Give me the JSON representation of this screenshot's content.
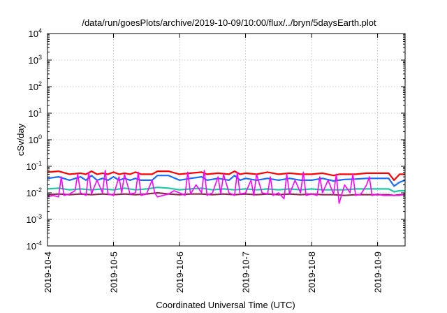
{
  "chart_data": {
    "type": "line",
    "title": "/data/run/goesPlots/archive/2019-10-09/10:00/flux/../bryn/5daysEarth.plot",
    "xlabel": "Coordinated Universal Time (UTC)",
    "ylabel": "cSv/day",
    "x_ticks": [
      "2019-10-4",
      "2019-10-5",
      "2019-10-6",
      "2019-10-7",
      "2019-10-8",
      "2019-10-9"
    ],
    "x_range": [
      "2019-10-04T00:00",
      "2019-10-09T10:00"
    ],
    "y_scale": "log",
    "ylim": [
      0.0001,
      10000
    ],
    "y_ticks": [
      {
        "base": "10",
        "exp": "4"
      },
      {
        "base": "10",
        "exp": "3"
      },
      {
        "base": "10",
        "exp": "2"
      },
      {
        "base": "10",
        "exp": "1"
      },
      {
        "base": "10",
        "exp": "0"
      },
      {
        "base": "10",
        "exp": "-1"
      },
      {
        "base": "10",
        "exp": "-2"
      },
      {
        "base": "10",
        "exp": "-3"
      },
      {
        "base": "10",
        "exp": "-4"
      }
    ],
    "grid": true,
    "series": [
      {
        "color": "#ff0000",
        "x_hours": [
          0,
          4,
          8,
          12,
          14,
          16,
          18,
          20,
          22,
          24,
          26,
          28,
          30,
          32,
          34,
          38,
          40,
          44,
          48,
          52,
          56,
          58,
          62,
          66,
          68,
          70,
          72,
          76,
          80,
          84,
          88,
          92,
          96,
          100,
          104,
          106,
          108,
          112,
          116,
          120,
          124,
          126,
          128,
          130
        ],
        "values": [
          0.06,
          0.065,
          0.05,
          0.055,
          0.05,
          0.065,
          0.05,
          0.055,
          0.05,
          0.06,
          0.05,
          0.055,
          0.05,
          0.06,
          0.05,
          0.05,
          0.065,
          0.065,
          0.05,
          0.055,
          0.06,
          0.05,
          0.055,
          0.05,
          0.065,
          0.05,
          0.055,
          0.05,
          0.06,
          0.05,
          0.055,
          0.05,
          0.05,
          0.055,
          0.045,
          0.05,
          0.05,
          0.05,
          0.055,
          0.055,
          0.055,
          0.03,
          0.05,
          0.05
        ]
      },
      {
        "color": "#1a6cff",
        "x_hours": [
          0,
          4,
          8,
          12,
          14,
          16,
          18,
          20,
          22,
          24,
          26,
          28,
          30,
          32,
          34,
          38,
          40,
          44,
          48,
          52,
          56,
          58,
          62,
          66,
          68,
          70,
          72,
          76,
          80,
          84,
          88,
          92,
          96,
          100,
          104,
          106,
          108,
          112,
          116,
          120,
          124,
          126,
          128,
          130
        ],
        "values": [
          0.035,
          0.04,
          0.03,
          0.04,
          0.03,
          0.045,
          0.03,
          0.035,
          0.03,
          0.04,
          0.03,
          0.035,
          0.03,
          0.035,
          0.03,
          0.03,
          0.045,
          0.045,
          0.03,
          0.035,
          0.04,
          0.03,
          0.035,
          0.03,
          0.045,
          0.03,
          0.035,
          0.03,
          0.035,
          0.03,
          0.035,
          0.03,
          0.03,
          0.035,
          0.028,
          0.03,
          0.032,
          0.033,
          0.035,
          0.035,
          0.035,
          0.018,
          0.025,
          0.03
        ]
      },
      {
        "color": "#1ec8a0",
        "x_hours": [
          0,
          4,
          8,
          12,
          16,
          20,
          24,
          28,
          32,
          36,
          40,
          44,
          48,
          52,
          56,
          60,
          64,
          68,
          72,
          76,
          80,
          84,
          88,
          92,
          96,
          100,
          104,
          108,
          112,
          116,
          120,
          124,
          126,
          128,
          130
        ],
        "values": [
          0.014,
          0.015,
          0.013,
          0.014,
          0.013,
          0.014,
          0.013,
          0.015,
          0.013,
          0.014,
          0.016,
          0.015,
          0.013,
          0.014,
          0.015,
          0.013,
          0.014,
          0.013,
          0.014,
          0.013,
          0.014,
          0.013,
          0.014,
          0.013,
          0.014,
          0.013,
          0.013,
          0.013,
          0.014,
          0.014,
          0.014,
          0.014,
          0.011,
          0.012,
          0.012
        ]
      },
      {
        "color": "#8b2a50",
        "x_hours": [
          0,
          4,
          8,
          12,
          16,
          20,
          24,
          28,
          32,
          36,
          40,
          44,
          48,
          52,
          56,
          60,
          64,
          68,
          72,
          76,
          80,
          84,
          88,
          92,
          96,
          100,
          104,
          108,
          112,
          116,
          120,
          124,
          126,
          128,
          130
        ],
        "values": [
          0.0085,
          0.009,
          0.0085,
          0.009,
          0.0085,
          0.009,
          0.0085,
          0.009,
          0.0085,
          0.009,
          0.01,
          0.009,
          0.0085,
          0.009,
          0.009,
          0.0085,
          0.009,
          0.0085,
          0.009,
          0.0085,
          0.009,
          0.0085,
          0.009,
          0.0085,
          0.009,
          0.0085,
          0.0085,
          0.008,
          0.0085,
          0.0085,
          0.0085,
          0.0085,
          0.008,
          0.0085,
          0.0085
        ]
      },
      {
        "color": "#ff00ff",
        "x_hours": [
          0,
          2,
          4,
          5,
          6,
          8,
          10,
          11,
          12,
          14,
          15,
          16,
          18,
          20,
          21,
          22,
          24,
          26,
          27,
          28,
          30,
          32,
          33,
          34,
          36,
          38,
          39,
          40,
          42,
          44,
          46,
          48,
          50,
          51,
          52,
          54,
          56,
          57,
          58,
          60,
          62,
          63,
          64,
          66,
          68,
          69,
          70,
          72,
          74,
          75,
          76,
          78,
          80,
          81,
          82,
          84,
          86,
          87,
          88,
          90,
          92,
          93,
          94,
          96,
          98,
          99,
          100,
          102,
          104,
          105,
          106,
          108,
          110,
          111,
          112,
          114,
          116,
          117,
          118,
          120,
          122,
          124,
          126,
          128,
          130
        ],
        "values": [
          0.007,
          0.008,
          0.007,
          0.04,
          0.008,
          0.009,
          0.012,
          0.05,
          0.01,
          0.008,
          0.06,
          0.009,
          0.03,
          0.01,
          0.07,
          0.009,
          0.008,
          0.04,
          0.01,
          0.05,
          0.009,
          0.01,
          0.06,
          0.008,
          0.009,
          0.03,
          0.01,
          0.007,
          0.008,
          0.009,
          0.012,
          0.01,
          0.008,
          0.06,
          0.009,
          0.02,
          0.01,
          0.07,
          0.008,
          0.01,
          0.04,
          0.009,
          0.05,
          0.01,
          0.008,
          0.06,
          0.009,
          0.01,
          0.03,
          0.008,
          0.05,
          0.01,
          0.009,
          0.04,
          0.008,
          0.01,
          0.006,
          0.05,
          0.009,
          0.03,
          0.01,
          0.06,
          0.008,
          0.009,
          0.008,
          0.04,
          0.01,
          0.03,
          0.009,
          0.05,
          0.004,
          0.02,
          0.01,
          0.05,
          0.008,
          0.009,
          0.02,
          0.04,
          0.008,
          0.009,
          0.008,
          0.008,
          0.008,
          0.008,
          0.009
        ]
      }
    ]
  }
}
